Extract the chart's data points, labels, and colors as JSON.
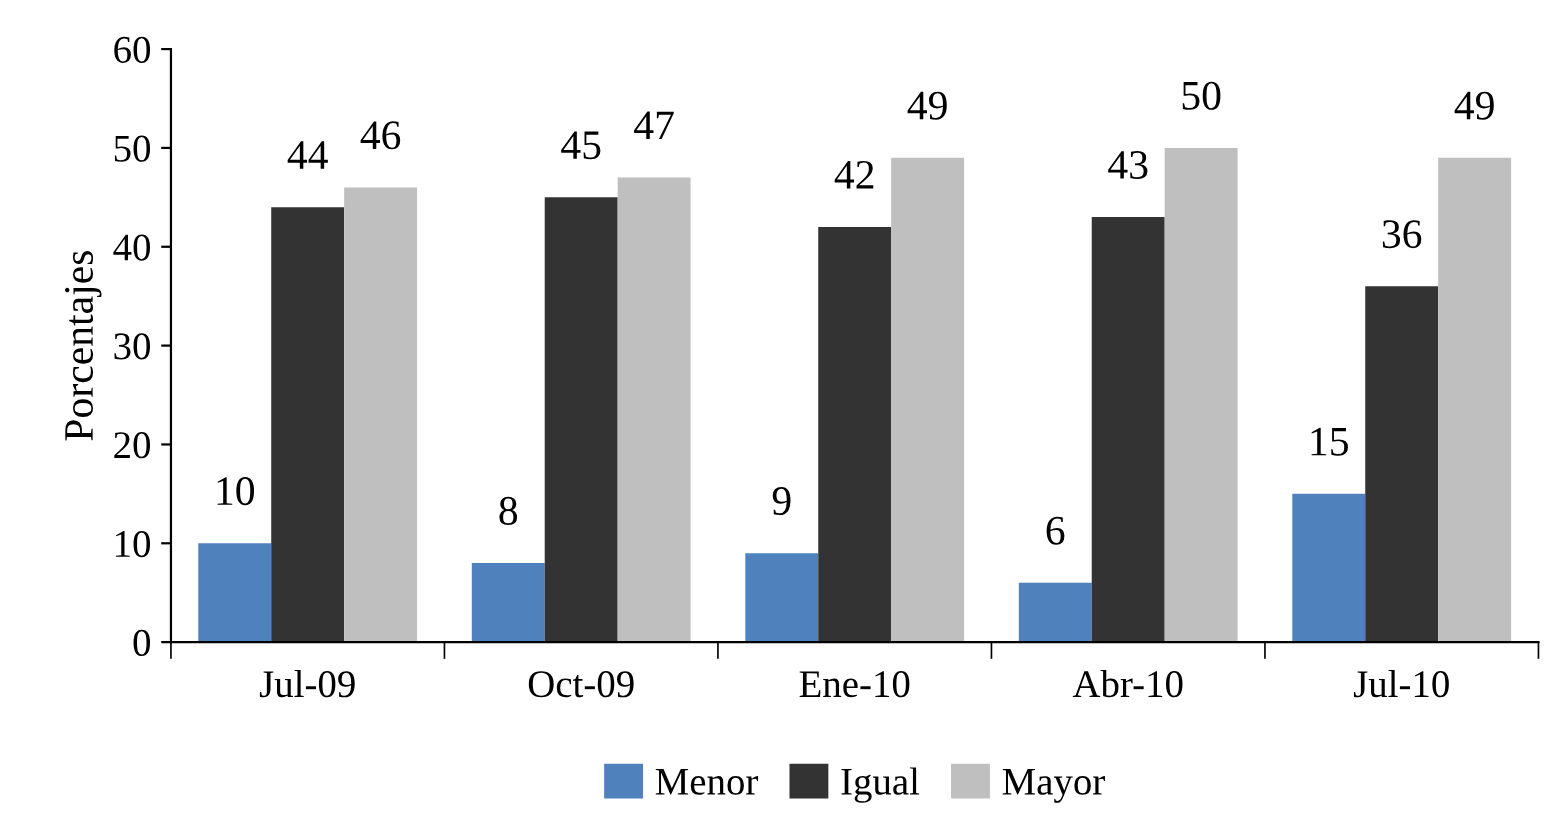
{
  "chart_data": {
    "type": "bar",
    "ylabel": "Porcentajes",
    "categories": [
      "Jul-09",
      "Oct-09",
      "Ene-10",
      "Abr-10",
      "Jul-10"
    ],
    "series": [
      {
        "name": "Menor",
        "color": "#4f81bd",
        "values": [
          10,
          8,
          9,
          6,
          15
        ]
      },
      {
        "name": "Igual",
        "color": "#333333",
        "values": [
          44,
          45,
          42,
          43,
          36
        ]
      },
      {
        "name": "Mayor",
        "color": "#bfbfbf",
        "values": [
          46,
          47,
          49,
          50,
          49
        ]
      }
    ],
    "ylim": [
      0,
      60
    ],
    "yticks": [
      0,
      10,
      20,
      30,
      40,
      50,
      60
    ],
    "data_labels": true,
    "legend": "bottom",
    "grid": false
  }
}
